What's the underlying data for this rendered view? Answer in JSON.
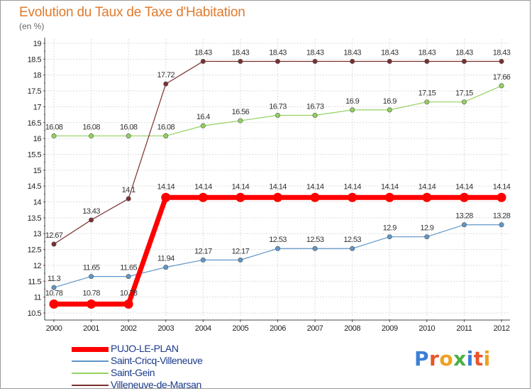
{
  "title": "Evolution du Taux de Taxe d'Habitation",
  "unit": "(en %)",
  "logo": {
    "text": "Proxiti",
    "letters": [
      "P",
      "r",
      "o",
      "x",
      "i",
      "t",
      "i"
    ],
    "colors": [
      "#3b7fd6",
      "#e8552a",
      "#f0a020",
      "#4bb043",
      "#3b7fd6",
      "#e8552a",
      "#f0a020"
    ]
  },
  "chart_data": {
    "type": "line",
    "title": "Evolution du Taux de Taxe d'Habitation",
    "ylabel": "(en %)",
    "x": [
      "2000",
      "2001",
      "2002",
      "2003",
      "2004",
      "2005",
      "2006",
      "2007",
      "2008",
      "2009",
      "2010",
      "2011",
      "2012"
    ],
    "ylim": [
      10.5,
      19
    ],
    "yticks": [
      "10.5",
      "11",
      "11.5",
      "12",
      "12.5",
      "13",
      "13.5",
      "14",
      "14.5",
      "15",
      "15.5",
      "16",
      "16.5",
      "17",
      "17.5",
      "18",
      "18.5",
      "19"
    ],
    "grid": true,
    "series": [
      {
        "name": "PUJO-LE-PLAN",
        "color": "#ff0000",
        "width": 7,
        "values": [
          10.78,
          10.78,
          10.78,
          14.14,
          14.14,
          14.14,
          14.14,
          14.14,
          14.14,
          14.14,
          14.14,
          14.14,
          14.14
        ],
        "labels": [
          "10.78",
          "10.78",
          "10.78",
          "14.14",
          "14.14",
          "14.14",
          "14.14",
          "14.14",
          "14.14",
          "14.14",
          "14.14",
          "14.14",
          "14.14"
        ]
      },
      {
        "name": "Saint-Cricq-Villeneuve",
        "color": "#5f96c8",
        "width": 1.2,
        "values": [
          11.3,
          11.65,
          11.65,
          11.94,
          12.17,
          12.17,
          12.53,
          12.53,
          12.53,
          12.9,
          12.9,
          13.28,
          13.28
        ],
        "labels": [
          "11.3",
          "11.65",
          "11.65",
          "11.94",
          "12.17",
          "12.17",
          "12.53",
          "12.53",
          "12.53",
          "12.9",
          "12.9",
          "13.28",
          "13.28"
        ]
      },
      {
        "name": "Saint-Gein",
        "color": "#93d160",
        "width": 1.2,
        "values": [
          16.08,
          16.08,
          16.08,
          16.08,
          16.4,
          16.56,
          16.73,
          16.73,
          16.9,
          16.9,
          17.15,
          17.15,
          17.66
        ],
        "labels": [
          "16.08",
          "16.08",
          "16.08",
          "16.08",
          "16.4",
          "16.56",
          "16.73",
          "16.73",
          "16.9",
          "16.9",
          "17.15",
          "17.15",
          "17.66"
        ]
      },
      {
        "name": "Villeneuve-de-Marsan",
        "color": "#7a3030",
        "width": 1.2,
        "values": [
          12.67,
          13.43,
          14.1,
          17.72,
          18.43,
          18.43,
          18.43,
          18.43,
          18.43,
          18.43,
          18.43,
          18.43,
          18.43
        ],
        "labels": [
          "12.67",
          "13.43",
          "14.1",
          "17.72",
          "18.43",
          "18.43",
          "18.43",
          "18.43",
          "18.43",
          "18.43",
          "18.43",
          "18.43",
          "18.43"
        ]
      }
    ]
  }
}
